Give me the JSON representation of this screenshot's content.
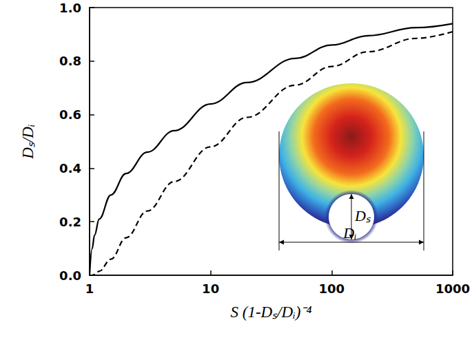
{
  "chart_data": {
    "type": "line",
    "x_label": "S (1-Dₛ/Dᵢ)⁻⁴",
    "y_label": "Dₛ/Dᵢ",
    "log": "x",
    "xlim": [
      1,
      1000
    ],
    "xticks": [
      1,
      10,
      100,
      1000
    ],
    "ylim": [
      0,
      1
    ],
    "yticks": [
      {
        "value": 0,
        "label": "0.0"
      },
      {
        "value": 0.2,
        "label": "0.2"
      },
      {
        "value": 0.4,
        "label": "0.4"
      },
      {
        "value": 0.6,
        "label": "0.6"
      },
      {
        "value": 0.8,
        "label": "0.8"
      },
      {
        "value": 1,
        "label": "1.0"
      }
    ],
    "grid": false,
    "x": [
      1,
      1.05,
      1.1,
      1.2,
      1.5,
      2,
      3,
      5,
      10,
      20,
      50,
      100,
      200,
      500,
      1000
    ],
    "series": [
      {
        "color": "#000000",
        "line_style": "solid",
        "values": [
          0,
          0.1,
          0.15,
          0.21,
          0.3,
          0.38,
          0.46,
          0.54,
          0.64,
          0.72,
          0.81,
          0.86,
          0.895,
          0.925,
          0.94
        ]
      },
      {
        "color": "#000000",
        "line_style": "dashed",
        "values": [
          0,
          0,
          0.003,
          0.015,
          0.06,
          0.14,
          0.24,
          0.35,
          0.48,
          0.59,
          0.71,
          0.78,
          0.835,
          0.885,
          0.91
        ]
      }
    ],
    "annotations": [
      {
        "text": "Dₛ"
      },
      {
        "text": "Dᵢ"
      }
    ]
  }
}
